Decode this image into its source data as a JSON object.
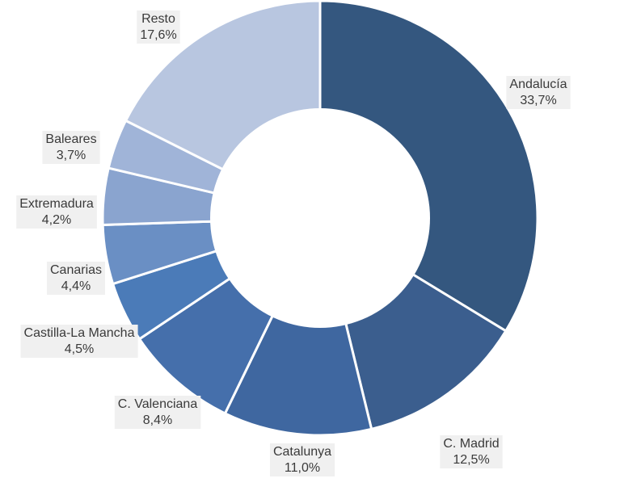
{
  "chart_data": {
    "type": "pie",
    "donut": true,
    "start_angle_deg": 0,
    "direction": "clockwise",
    "slices": [
      {
        "label": "Andalucía",
        "value": 33.7,
        "value_text": "33,7%",
        "color": "#34577F"
      },
      {
        "label": "C. Madrid",
        "value": 12.5,
        "value_text": "12,5%",
        "color": "#3B5E8E"
      },
      {
        "label": "Catalunya",
        "value": 11.0,
        "value_text": "11,0%",
        "color": "#3F67A0"
      },
      {
        "label": "C. Valenciana",
        "value": 8.4,
        "value_text": "8,4%",
        "color": "#456FAB"
      },
      {
        "label": "Castilla-La Mancha",
        "value": 4.5,
        "value_text": "4,5%",
        "color": "#4B7BB8"
      },
      {
        "label": "Canarias",
        "value": 4.4,
        "value_text": "4,4%",
        "color": "#6A8FC4"
      },
      {
        "label": "Extremadura",
        "value": 4.2,
        "value_text": "4,2%",
        "color": "#8AA4CF"
      },
      {
        "label": "Baleares",
        "value": 3.7,
        "value_text": "3,7%",
        "color": "#A0B4D8"
      },
      {
        "label": "Resto",
        "value": 17.6,
        "value_text": "17,6%",
        "color": "#B8C6E0"
      }
    ]
  }
}
